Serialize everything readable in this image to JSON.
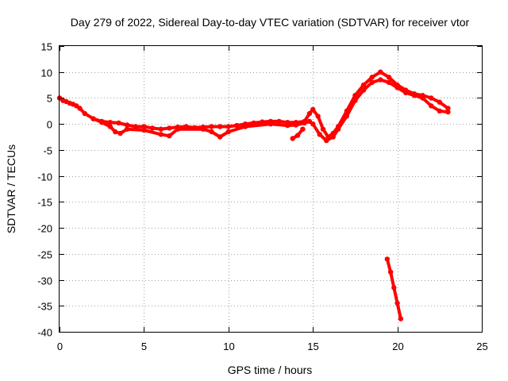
{
  "chart_data": {
    "type": "scatter",
    "title": "Day 279 of 2022, Sidereal Day-to-day VTEC variation (SDTVAR) for receiver vtor",
    "xlabel": "GPS time / hours",
    "ylabel": "SDTVAR / TECUs",
    "xlim": [
      0,
      25
    ],
    "ylim": [
      -40,
      15
    ],
    "xticks": [
      0,
      5,
      10,
      15,
      20,
      25
    ],
    "yticks": [
      15,
      10,
      5,
      0,
      -5,
      -10,
      -15,
      -20,
      -25,
      -30,
      -35,
      -40
    ],
    "grid": true,
    "series_color": "#ff0000",
    "series": [
      {
        "name": "trace-main",
        "points": [
          [
            0.0,
            5.0
          ],
          [
            0.2,
            4.5
          ],
          [
            0.4,
            4.3
          ],
          [
            0.6,
            4.0
          ],
          [
            0.8,
            3.8
          ],
          [
            1.0,
            3.5
          ],
          [
            1.2,
            3.0
          ],
          [
            1.5,
            2.0
          ],
          [
            2.0,
            1.0
          ],
          [
            2.5,
            0.5
          ],
          [
            3.0,
            0.3
          ],
          [
            3.5,
            0.2
          ],
          [
            4.0,
            -0.2
          ],
          [
            4.5,
            -0.5
          ],
          [
            5.0,
            -0.5
          ],
          [
            5.5,
            -0.8
          ],
          [
            6.0,
            -1.0
          ],
          [
            6.5,
            -0.8
          ],
          [
            7.0,
            -0.6
          ],
          [
            7.5,
            -0.5
          ],
          [
            8.0,
            -0.7
          ],
          [
            8.5,
            -0.6
          ],
          [
            9.0,
            -0.5
          ],
          [
            9.5,
            -0.5
          ],
          [
            10.0,
            -0.5
          ],
          [
            10.5,
            -0.3
          ],
          [
            11.0,
            0.0
          ],
          [
            11.5,
            0.2
          ],
          [
            12.0,
            0.4
          ],
          [
            12.5,
            0.5
          ],
          [
            13.0,
            0.5
          ],
          [
            13.5,
            0.3
          ],
          [
            14.0,
            0.3
          ],
          [
            14.5,
            0.5
          ],
          [
            14.8,
            2.0
          ],
          [
            15.0,
            2.8
          ],
          [
            15.3,
            1.5
          ],
          [
            15.6,
            -1.0
          ],
          [
            15.9,
            -2.5
          ],
          [
            16.2,
            -1.8
          ],
          [
            16.5,
            -0.5
          ],
          [
            17.0,
            2.5
          ],
          [
            17.5,
            5.5
          ],
          [
            18.0,
            7.5
          ],
          [
            18.5,
            9.0
          ],
          [
            19.0,
            10.0
          ],
          [
            19.5,
            9.0
          ],
          [
            20.0,
            7.5
          ],
          [
            20.5,
            6.5
          ],
          [
            21.0,
            5.8
          ],
          [
            21.5,
            5.5
          ],
          [
            22.0,
            5.0
          ],
          [
            22.5,
            4.2
          ],
          [
            23.0,
            3.0
          ]
        ]
      },
      {
        "name": "trace-lower",
        "points": [
          [
            2.0,
            1.0
          ],
          [
            2.5,
            0.3
          ],
          [
            3.0,
            -0.5
          ],
          [
            3.3,
            -1.5
          ],
          [
            3.6,
            -1.8
          ],
          [
            4.0,
            -1.0
          ],
          [
            5.0,
            -1.2
          ],
          [
            6.0,
            -2.0
          ],
          [
            6.5,
            -2.3
          ],
          [
            7.0,
            -1.0
          ],
          [
            8.5,
            -1.0
          ],
          [
            9.0,
            -1.5
          ],
          [
            9.5,
            -2.5
          ],
          [
            10.0,
            -1.5
          ],
          [
            11.0,
            -0.5
          ],
          [
            12.5,
            0.0
          ],
          [
            13.5,
            -0.3
          ],
          [
            14.0,
            -0.2
          ],
          [
            14.5,
            0.2
          ],
          [
            14.8,
            0.5
          ],
          [
            15.0,
            0.0
          ],
          [
            15.4,
            -2.0
          ],
          [
            15.8,
            -3.2
          ],
          [
            16.2,
            -2.5
          ],
          [
            16.5,
            -1.0
          ],
          [
            17.0,
            1.5
          ],
          [
            17.5,
            4.5
          ],
          [
            18.0,
            6.5
          ],
          [
            18.5,
            8.0
          ],
          [
            19.0,
            8.5
          ],
          [
            19.5,
            8.0
          ],
          [
            20.0,
            7.0
          ],
          [
            20.5,
            6.0
          ],
          [
            21.0,
            5.5
          ],
          [
            21.5,
            5.0
          ],
          [
            22.0,
            3.5
          ],
          [
            22.5,
            2.5
          ],
          [
            23.0,
            2.3
          ]
        ]
      },
      {
        "name": "trace-short",
        "points": [
          [
            13.8,
            -2.8
          ],
          [
            14.1,
            -2.2
          ],
          [
            14.4,
            -1.0
          ]
        ]
      },
      {
        "name": "trace-drop",
        "points": [
          [
            19.4,
            -26.0
          ],
          [
            19.6,
            -28.5
          ],
          [
            19.8,
            -31.5
          ],
          [
            20.0,
            -34.5
          ],
          [
            20.2,
            -37.5
          ]
        ]
      }
    ]
  }
}
